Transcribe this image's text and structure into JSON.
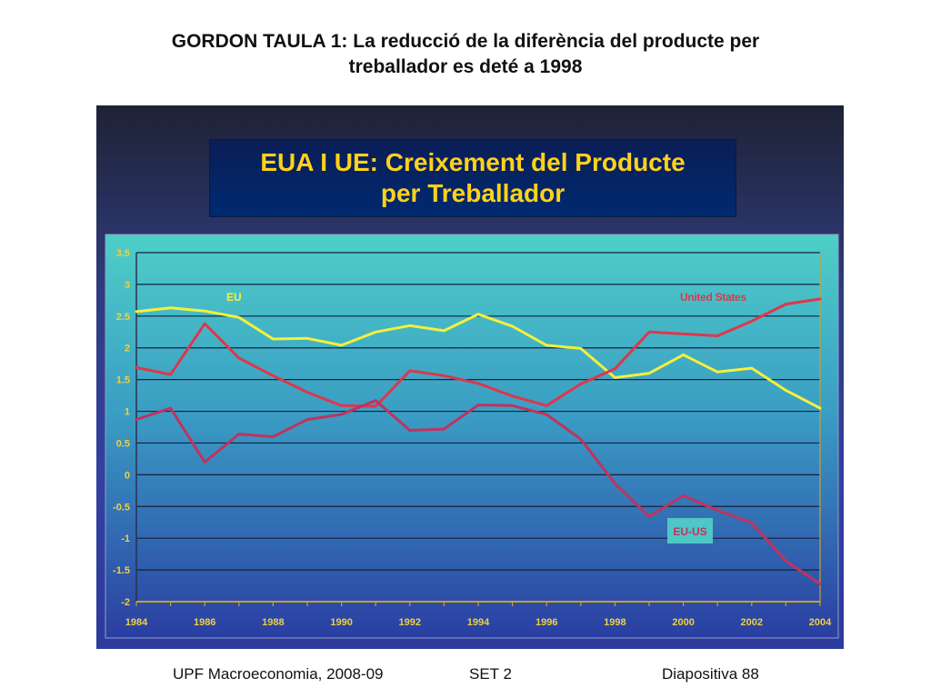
{
  "slide": {
    "title_line1": "GORDON TAULA 1: La reducció de la diferència del producte per",
    "title_line2": "treballador es deté a 1998"
  },
  "footer": {
    "left": "UPF Macroeconomia, 2008-09",
    "center": "SET 2",
    "right": "Diapositiva 88"
  },
  "colors": {
    "eu": "#f5f03a",
    "us": "#e0364a",
    "eu_us": "#c0335e",
    "plot_top": "#4ecfc7",
    "plot_bottom": "#2a3ea2",
    "tick_labels": "#f0d040",
    "label_box": "#4fc7c7"
  },
  "chart_data": {
    "type": "line",
    "title": "EUA I UE: Creixement del Producte per Treballador",
    "title_line1": "EUA I UE: Creixement del Producte",
    "title_line2": "per Treballador",
    "x": [
      1984,
      1985,
      1986,
      1987,
      1988,
      1989,
      1990,
      1991,
      1992,
      1993,
      1994,
      1995,
      1996,
      1997,
      1998,
      1999,
      2000,
      2001,
      2002,
      2003,
      2004
    ],
    "x_tick_labels": [
      "1984",
      "1986",
      "1988",
      "1990",
      "1992",
      "1994",
      "1996",
      "1998",
      "2000",
      "2002",
      "2004"
    ],
    "y_tick_labels": [
      "3.5",
      "3",
      "2.5",
      "2",
      "1.5",
      "1",
      "0.5",
      "0",
      "-0.5",
      "-1",
      "-1.5",
      "-2"
    ],
    "ylim": [
      -2,
      3.5
    ],
    "xlim": [
      1984,
      2004
    ],
    "grid": true,
    "series": [
      {
        "name": "EU",
        "color_key": "eu",
        "values": [
          2.57,
          2.63,
          2.58,
          2.48,
          2.14,
          2.15,
          2.04,
          2.25,
          2.35,
          2.27,
          2.53,
          2.34,
          2.04,
          1.99,
          1.53,
          1.6,
          1.89,
          1.62,
          1.68,
          1.33,
          1.05
        ]
      },
      {
        "name": "United States",
        "color_key": "us",
        "values": [
          1.69,
          1.58,
          2.38,
          1.84,
          1.56,
          1.3,
          1.09,
          1.08,
          1.64,
          1.56,
          1.44,
          1.24,
          1.09,
          1.43,
          1.67,
          2.25,
          2.22,
          2.19,
          2.42,
          2.69,
          2.77
        ]
      },
      {
        "name": "EU-US",
        "color_key": "eu_us",
        "values": [
          0.87,
          1.05,
          0.2,
          0.64,
          0.6,
          0.87,
          0.95,
          1.17,
          0.7,
          0.72,
          1.1,
          1.09,
          0.95,
          0.56,
          -0.14,
          -0.66,
          -0.33,
          -0.56,
          -0.76,
          -1.36,
          -1.72
        ]
      }
    ]
  }
}
